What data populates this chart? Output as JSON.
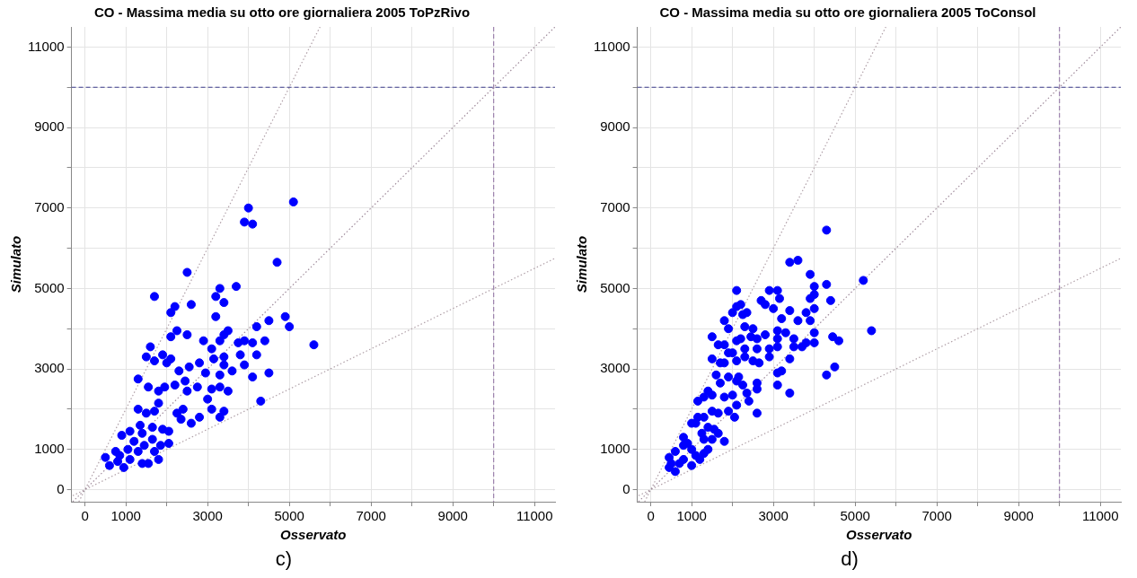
{
  "chart_data": [
    {
      "type": "scatter",
      "title": "CO - Massima media su otto ore giornaliera 2005 ToPzRivo",
      "xlabel": "Osservato",
      "ylabel": "Simulato",
      "annotations": [
        "c)"
      ],
      "xlim": [
        -330,
        11500
      ],
      "ylim": [
        -300,
        11500
      ],
      "xticks": [
        0,
        1000,
        {
          "value": 2000,
          "label": null
        },
        3000,
        {
          "value": 4000,
          "label": null
        },
        5000,
        {
          "value": 6000,
          "label": null
        },
        7000,
        {
          "value": 8000,
          "label": null
        },
        9000,
        {
          "value": 10000,
          "label": null
        },
        11000
      ],
      "yticks": [
        0,
        1000,
        {
          "value": 2000,
          "label": null
        },
        3000,
        {
          "value": 4000,
          "label": null
        },
        5000,
        {
          "value": 6000,
          "label": null
        },
        7000,
        {
          "value": 8000,
          "label": null
        },
        9000,
        {
          "value": 10000,
          "label": null
        },
        11000
      ],
      "grid": true,
      "legend": false,
      "ref_lines": [
        {
          "axis": "y",
          "value": 10000,
          "color": "#3c3c8c",
          "line_style": "dashed"
        },
        {
          "axis": "x",
          "value": 10000,
          "color": "#8c6ca0",
          "line_style": "dashed"
        }
      ],
      "series": [
        {
          "marker": "circle",
          "color": "#0000ff",
          "x": [
            5100,
            4000,
            3900,
            4100,
            4700,
            2500,
            1700,
            3700,
            3300,
            2600,
            2200,
            2100,
            3200,
            3400,
            4900,
            4500,
            5000,
            4200,
            5600,
            4400,
            4100,
            3900,
            3750,
            3500,
            3400,
            3200,
            3300,
            2500,
            2250,
            2100,
            1600,
            1500,
            1700,
            1900,
            2000,
            2900,
            3100,
            3150,
            3400,
            3400,
            3800,
            4200,
            3900,
            3600,
            4100,
            4500,
            3300,
            3100,
            3300,
            3500,
            4300,
            3400,
            3300,
            3100,
            3000,
            2950,
            2800,
            2550,
            2750,
            2600,
            2800,
            2350,
            2400,
            2500,
            2450,
            2300,
            2200,
            2100,
            1950,
            1800,
            1800,
            1550,
            1300,
            1300,
            1500,
            1700,
            2250,
            2050,
            500,
            600,
            800,
            900,
            1100,
            1350,
            1650,
            1900,
            2050,
            950,
            1100,
            1300,
            1450,
            1650,
            1800,
            1400,
            1550,
            1050,
            1200,
            850,
            1700,
            1850,
            1400,
            750
          ],
          "values": [
            7150,
            7000,
            6650,
            6600,
            5650,
            5400,
            4800,
            5050,
            5000,
            4600,
            4550,
            4400,
            4800,
            4650,
            4300,
            4200,
            4050,
            4050,
            3600,
            3700,
            3650,
            3700,
            3650,
            3950,
            3850,
            4300,
            3700,
            3850,
            3950,
            3800,
            3550,
            3300,
            3200,
            3350,
            3150,
            3700,
            3500,
            3250,
            3300,
            3100,
            3350,
            3350,
            3100,
            2950,
            2800,
            2900,
            2850,
            2500,
            2550,
            2450,
            2200,
            1950,
            1800,
            2000,
            2250,
            2900,
            3150,
            3050,
            2550,
            1650,
            1800,
            1750,
            2000,
            2450,
            2700,
            2950,
            2600,
            3250,
            2550,
            2450,
            2150,
            2550,
            2750,
            2000,
            1900,
            1950,
            1900,
            1450,
            800,
            600,
            700,
            1350,
            1450,
            1600,
            1550,
            1500,
            1150,
            550,
            750,
            950,
            1100,
            1250,
            750,
            650,
            650,
            1000,
            1200,
            850,
            950,
            1100,
            1400,
            950
          ]
        },
        {
          "type": "line",
          "color": "#a08c9c",
          "line_style": "dotted",
          "x": [
            -300,
            11500
          ],
          "values": [
            -300,
            11500
          ]
        },
        {
          "type": "line",
          "color": "#b0a0a8",
          "line_style": "dotted",
          "x": [
            -150,
            5750
          ],
          "values": [
            -300,
            11500
          ]
        },
        {
          "type": "line",
          "color": "#b0a0a8",
          "line_style": "dotted",
          "x": [
            -300,
            11500
          ],
          "values": [
            -150,
            5750
          ]
        }
      ]
    },
    {
      "type": "scatter",
      "title": "CO - Massima media su otto ore giornaliera 2005 ToConsol",
      "xlabel": "Osservato",
      "ylabel": "Simulato",
      "annotations": [
        "d)"
      ],
      "xlim": [
        -330,
        11500
      ],
      "ylim": [
        -300,
        11500
      ],
      "xticks": [
        0,
        1000,
        {
          "value": 2000,
          "label": null
        },
        3000,
        {
          "value": 4000,
          "label": null
        },
        5000,
        {
          "value": 6000,
          "label": null
        },
        7000,
        {
          "value": 8000,
          "label": null
        },
        9000,
        {
          "value": 10000,
          "label": null
        },
        11000
      ],
      "yticks": [
        0,
        1000,
        {
          "value": 2000,
          "label": null
        },
        3000,
        {
          "value": 4000,
          "label": null
        },
        5000,
        {
          "value": 6000,
          "label": null
        },
        7000,
        {
          "value": 8000,
          "label": null
        },
        9000,
        {
          "value": 10000,
          "label": null
        },
        11000
      ],
      "grid": true,
      "legend": false,
      "ref_lines": [
        {
          "axis": "y",
          "value": 10000,
          "color": "#3c3c8c",
          "line_style": "dashed"
        },
        {
          "axis": "x",
          "value": 10000,
          "color": "#8c6ca0",
          "line_style": "dashed"
        }
      ],
      "series": [
        {
          "marker": "circle",
          "color": "#0000ff",
          "x": [
            4300,
            3400,
            3600,
            5200,
            5400,
            3900,
            4300,
            4400,
            4000,
            4000,
            3900,
            4000,
            3800,
            3900,
            3600,
            3400,
            3200,
            3000,
            3100,
            2900,
            3150,
            2700,
            2800,
            2100,
            2100,
            2200,
            2000,
            2250,
            2350,
            1800,
            1900,
            2300,
            2500,
            1500,
            1650,
            1800,
            2100,
            2200,
            2450,
            2600,
            2800,
            3100,
            3100,
            3100,
            3300,
            3500,
            3500,
            3700,
            3800,
            4000,
            4000,
            4450,
            4600,
            2900,
            2600,
            2300,
            1900,
            2000,
            1500,
            1700,
            1800,
            2100,
            2300,
            2500,
            2650,
            3400,
            2900,
            3100,
            3200,
            4300,
            4500,
            3100,
            3400,
            2600,
            2600,
            2350,
            2400,
            2600,
            2100,
            2000,
            1600,
            1700,
            1400,
            1500,
            1150,
            1300,
            1800,
            1900,
            2100,
            2150,
            2250,
            1900,
            2050,
            1650,
            1500,
            1300,
            1150,
            1000,
            1100,
            1400,
            1550,
            1650,
            1800,
            1500,
            1300,
            800,
            800,
            1000,
            600,
            450,
            450,
            700,
            1000,
            1200,
            1300,
            1400,
            600,
            800,
            1100,
            500,
            900,
            1250
          ],
          "values": [
            6450,
            5650,
            5700,
            5200,
            3950,
            5350,
            5100,
            4700,
            5050,
            4850,
            4750,
            4500,
            4400,
            4200,
            4200,
            4450,
            4250,
            4500,
            4950,
            4950,
            4750,
            4700,
            4600,
            4950,
            4550,
            4600,
            4400,
            4350,
            4400,
            4200,
            4000,
            4050,
            4000,
            3800,
            3600,
            3600,
            3700,
            3750,
            3800,
            3750,
            3850,
            3950,
            3750,
            3550,
            3900,
            3750,
            3550,
            3550,
            3650,
            3900,
            3650,
            3800,
            3700,
            3500,
            3500,
            3500,
            3400,
            3400,
            3250,
            3150,
            3150,
            3200,
            3300,
            3200,
            3150,
            3250,
            3300,
            2900,
            2950,
            2850,
            3050,
            2600,
            2400,
            2500,
            2650,
            2400,
            2200,
            1900,
            2100,
            2350,
            2850,
            2650,
            2450,
            2350,
            2200,
            2300,
            2300,
            2800,
            2700,
            2800,
            2600,
            1950,
            1800,
            1900,
            1950,
            1800,
            1800,
            1650,
            1650,
            1550,
            1500,
            1400,
            1200,
            1250,
            1250,
            1300,
            1100,
            1000,
            950,
            800,
            550,
            650,
            600,
            750,
            900,
            1000,
            450,
            750,
            850,
            650,
            1150,
            1400
          ]
        },
        {
          "type": "line",
          "color": "#a08c9c",
          "line_style": "dotted",
          "x": [
            -300,
            11500
          ],
          "values": [
            -300,
            11500
          ]
        },
        {
          "type": "line",
          "color": "#b0a0a8",
          "line_style": "dotted",
          "x": [
            -150,
            5750
          ],
          "values": [
            -300,
            11500
          ]
        },
        {
          "type": "line",
          "color": "#b0a0a8",
          "line_style": "dotted",
          "x": [
            -300,
            11500
          ],
          "values": [
            -150,
            5750
          ]
        }
      ]
    }
  ]
}
